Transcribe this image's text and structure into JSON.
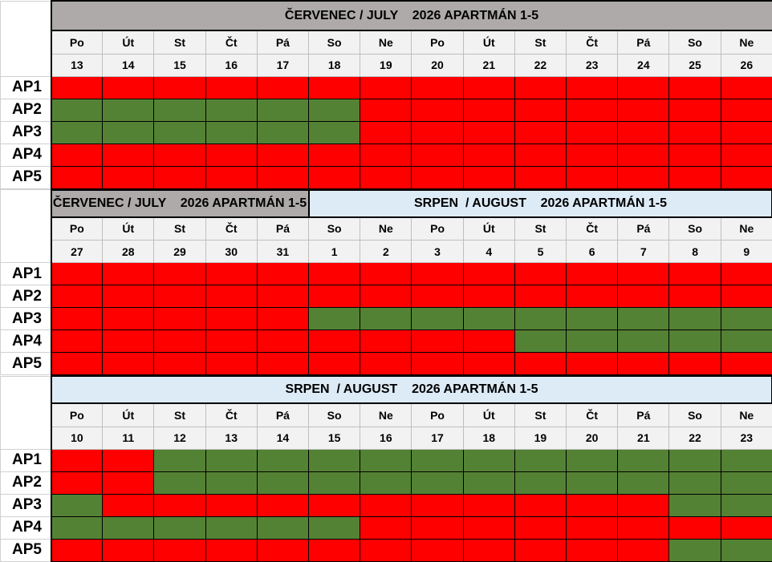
{
  "colors": {
    "booked": "#ff0000",
    "free": "#548235",
    "title_gray": "#aeaaaa",
    "title_blue": "#ddebf7",
    "day_bg": "#f2f2f2"
  },
  "legend_codes": {
    "R": "booked",
    "G": "free"
  },
  "blocks": [
    {
      "titles": [
        {
          "text": "ČERVENEC / JULY    2026 APARTMÁN 1-5",
          "span": 14,
          "color": "gray"
        }
      ],
      "days": [
        "Po",
        "Út",
        "St",
        "Čt",
        "Pá",
        "So",
        "Ne",
        "Po",
        "Út",
        "St",
        "Čt",
        "Pá",
        "So",
        "Ne"
      ],
      "dates": [
        "13",
        "14",
        "15",
        "16",
        "17",
        "18",
        "19",
        "20",
        "21",
        "22",
        "23",
        "24",
        "25",
        "26"
      ],
      "rows": [
        {
          "label": "AP1",
          "status": "RRRRRRRRRRRRRR"
        },
        {
          "label": "AP2",
          "status": "GGGGGGRRRRRRRR"
        },
        {
          "label": "AP3",
          "status": "GGGGGGRRRRRRRR"
        },
        {
          "label": "AP4",
          "status": "RRRRRRRRRRRRRR"
        },
        {
          "label": "AP5",
          "status": "RRRRRRRRRRRRRR"
        }
      ]
    },
    {
      "titles": [
        {
          "text": "ČERVENEC / JULY    2026 APARTMÁN 1-5",
          "span": 5,
          "color": "gray"
        },
        {
          "text": "SRPEN  / AUGUST    2026 APARTMÁN 1-5",
          "span": 9,
          "color": "blue"
        }
      ],
      "days": [
        "Po",
        "Út",
        "St",
        "Čt",
        "Pá",
        "So",
        "Ne",
        "Po",
        "Út",
        "St",
        "Čt",
        "Pá",
        "So",
        "Ne"
      ],
      "dates": [
        "27",
        "28",
        "29",
        "30",
        "31",
        "1",
        "2",
        "3",
        "4",
        "5",
        "6",
        "7",
        "8",
        "9"
      ],
      "rows": [
        {
          "label": "AP1",
          "status": "RRRRRRRRRRRRRR"
        },
        {
          "label": "AP2",
          "status": "RRRRRRRRRRRRRR"
        },
        {
          "label": "AP3",
          "status": "RRRRRGGGGGGGGG"
        },
        {
          "label": "AP4",
          "status": "RRRRRRRRRGGGGG"
        },
        {
          "label": "AP5",
          "status": "RRRRRRRRRRRRRR"
        }
      ]
    },
    {
      "titles": [
        {
          "text": "SRPEN  / AUGUST    2026 APARTMÁN 1-5",
          "span": 14,
          "color": "blue"
        }
      ],
      "days": [
        "Po",
        "Út",
        "St",
        "Čt",
        "Pá",
        "So",
        "Ne",
        "Po",
        "Út",
        "St",
        "Čt",
        "Pá",
        "So",
        "Ne"
      ],
      "dates": [
        "10",
        "11",
        "12",
        "13",
        "14",
        "15",
        "16",
        "17",
        "18",
        "19",
        "20",
        "21",
        "22",
        "23"
      ],
      "rows": [
        {
          "label": "AP1",
          "status": "RRGGGGGGGGGGGG"
        },
        {
          "label": "AP2",
          "status": "RRGGGGGGGGGGGG"
        },
        {
          "label": "AP3",
          "status": "GRRRRRRRRRRRGG"
        },
        {
          "label": "AP4",
          "status": "GGGGGGRRRRRRRR"
        },
        {
          "label": "AP5",
          "status": "RRRRRRRRRRRRGG"
        }
      ]
    }
  ]
}
